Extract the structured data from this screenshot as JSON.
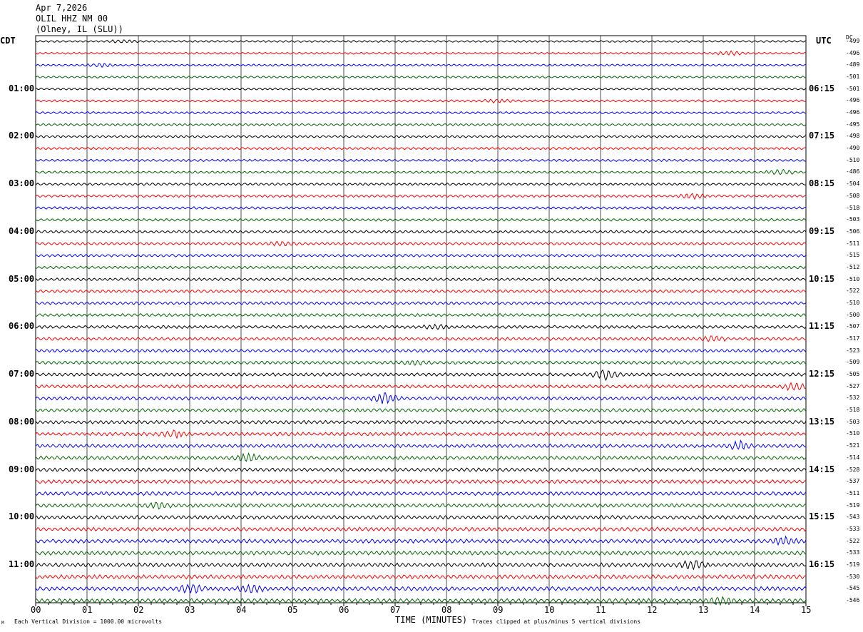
{
  "header": {
    "date": "Apr 7,2026",
    "station": "OLIL HHZ NM 00",
    "location": "(Olney, IL (SLU))"
  },
  "left_timezone": "CDT",
  "right_timezone": "UTC",
  "dc_label": "DC",
  "left_times": [
    "01:00",
    "02:00",
    "03:00",
    "04:00",
    "05:00",
    "06:00",
    "07:00",
    "08:00",
    "09:00",
    "10:00",
    "11:00"
  ],
  "right_times": [
    "06:15",
    "07:15",
    "08:15",
    "09:15",
    "10:15",
    "11:15",
    "12:15",
    "13:15",
    "14:15",
    "15:15",
    "16:15"
  ],
  "dc_offsets": [
    "-499",
    "-496",
    "-489",
    "-501",
    "-501",
    "-496",
    "-496",
    "-495",
    "-498",
    "-490",
    "-510",
    "-486",
    "-504",
    "-508",
    "-518",
    "-503",
    "-506",
    "-511",
    "-515",
    "-512",
    "-510",
    "-522",
    "-510",
    "-500",
    "-507",
    "-517",
    "-523",
    "-509",
    "-505",
    "-527",
    "-532",
    "-518",
    "-503",
    "-510",
    "-521",
    "-514",
    "-528",
    "-537",
    "-511",
    "-519",
    "-543",
    "-533",
    "-522",
    "-533",
    "-519",
    "-530",
    "-545",
    "-546"
  ],
  "footer": {
    "x_axis_title": "TIME (MINUTES)",
    "scale_note": "Each Vertical Division = 1000.00 microvolts",
    "clip_note": "Traces clipped at plus/minus 5 vertical divisions",
    "corner_mark": "M"
  },
  "colors": {
    "trace_cycle": [
      "#000000",
      "#ff0000",
      "#0000ff",
      "#006600"
    ],
    "grid": "#000000",
    "background": "#ffffff"
  },
  "chart_data": {
    "type": "line",
    "description_kind": "helicorder",
    "x_ticks": [
      "00",
      "01",
      "02",
      "03",
      "04",
      "05",
      "06",
      "07",
      "08",
      "09",
      "10",
      "11",
      "12",
      "13",
      "14",
      "15"
    ],
    "xlim": [
      0,
      15
    ],
    "trace_count": 48,
    "minutes_per_trace": 15,
    "events": [
      {
        "trace": 0,
        "minute": 1.7,
        "amp": 1.3
      },
      {
        "trace": 1,
        "minute": 13.5,
        "amp": 1.6
      },
      {
        "trace": 2,
        "minute": 1.3,
        "amp": 1.6
      },
      {
        "trace": 5,
        "minute": 9.0,
        "amp": 1.3
      },
      {
        "trace": 11,
        "minute": 14.5,
        "amp": 2.0
      },
      {
        "trace": 13,
        "minute": 12.8,
        "amp": 1.8
      },
      {
        "trace": 17,
        "minute": 4.8,
        "amp": 1.5
      },
      {
        "trace": 24,
        "minute": 7.8,
        "amp": 1.2
      },
      {
        "trace": 25,
        "minute": 13.2,
        "amp": 1.4
      },
      {
        "trace": 27,
        "minute": 7.4,
        "amp": 1.3
      },
      {
        "trace": 28,
        "minute": 11.1,
        "amp": 3.0
      },
      {
        "trace": 29,
        "minute": 14.8,
        "amp": 2.4
      },
      {
        "trace": 30,
        "minute": 6.8,
        "amp": 3.0
      },
      {
        "trace": 33,
        "minute": 2.7,
        "amp": 1.6
      },
      {
        "trace": 34,
        "minute": 13.7,
        "amp": 2.2
      },
      {
        "trace": 35,
        "minute": 4.1,
        "amp": 2.0
      },
      {
        "trace": 39,
        "minute": 2.4,
        "amp": 1.6
      },
      {
        "trace": 42,
        "minute": 14.6,
        "amp": 1.8
      },
      {
        "trace": 44,
        "minute": 12.8,
        "amp": 2.2
      },
      {
        "trace": 46,
        "minute": 3.0,
        "amp": 2.0
      },
      {
        "trace": 46,
        "minute": 4.2,
        "amp": 1.8
      },
      {
        "trace": 47,
        "minute": 13.3,
        "amp": 1.8
      }
    ]
  }
}
